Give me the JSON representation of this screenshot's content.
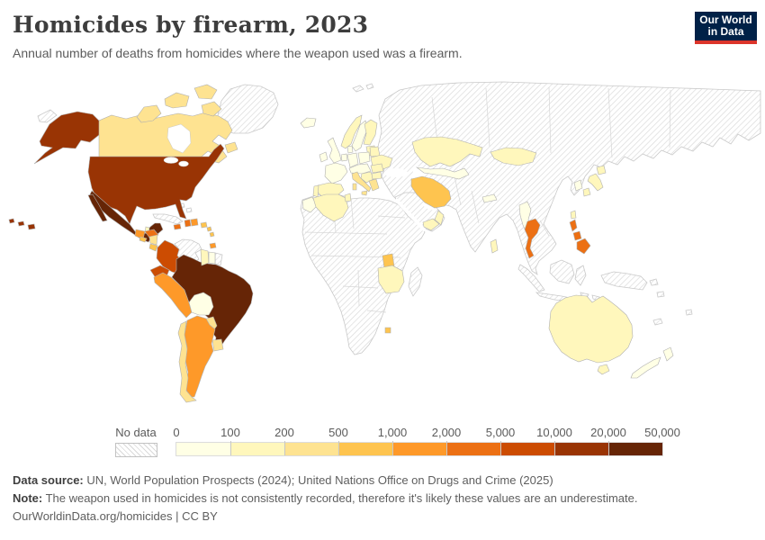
{
  "header": {
    "title": "Homicides by firearm, 2023",
    "subtitle": "Annual number of deaths from homicides where the weapon used was a firearm."
  },
  "logo": {
    "line1": "Our World",
    "line2": "in Data",
    "bg_color": "#002147",
    "accent_color": "#dc352b"
  },
  "legend": {
    "no_data_label": "No data",
    "tick_labels": [
      "0",
      "100",
      "200",
      "500",
      "1,000",
      "2,000",
      "5,000",
      "10,000",
      "20,000",
      "50,000"
    ],
    "bin_colors": [
      "#ffffe5",
      "#fff7bc",
      "#fee391",
      "#fec44f",
      "#fe9929",
      "#ec7014",
      "#cc4c02",
      "#993404",
      "#662506"
    ]
  },
  "footer": {
    "source_prefix": "Data source:",
    "source_text": " UN, World Population Prospects (2024); United Nations Office on Drugs and Crime (2025)",
    "note_prefix": "Note:",
    "note_text": " The weapon used in homicides is not consistently recorded, therefore it's likely these values are an underestimate.",
    "link_line": "OurWorldinData.org/homicides | CC BY"
  },
  "chart_data": {
    "type": "choropleth_map",
    "title": "Homicides by firearm, 2023",
    "unit": "annual deaths from firearm homicide",
    "legend_bins": [
      {
        "range": "0–100",
        "color": "#ffffe5"
      },
      {
        "range": "100–200",
        "color": "#fff7bc"
      },
      {
        "range": "200–500",
        "color": "#fee391"
      },
      {
        "range": "500–1,000",
        "color": "#fec44f"
      },
      {
        "range": "1,000–2,000",
        "color": "#fe9929"
      },
      {
        "range": "2,000–5,000",
        "color": "#ec7014"
      },
      {
        "range": "5,000–10,000",
        "color": "#cc4c02"
      },
      {
        "range": "10,000–20,000",
        "color": "#993404"
      },
      {
        "range": "20,000–50,000",
        "color": "#662506"
      }
    ],
    "countries": {
      "United States": "10,000–20,000",
      "Mexico": "20,000–50,000",
      "Canada": "200–500",
      "Guatemala": "1,000–2,000",
      "Belize": "100–200",
      "Honduras": "2,000–5,000",
      "El Salvador": "500–1,000",
      "Nicaragua": "200–500",
      "Costa Rica": "500–1,000",
      "Panama": "1,000–2,000",
      "Jamaica": "2,000–5,000",
      "Haiti": "2,000–5,000",
      "Dominican Republic": "1,000–2,000",
      "Puerto Rico": "500–1,000",
      "Trinidad and Tobago": "1,000–2,000",
      "Colombia": "5,000–10,000",
      "Ecuador": "5,000–10,000",
      "Peru": "1,000–2,000",
      "Brazil": "20,000–50,000",
      "Bolivia": "0–100",
      "Paraguay": "200–500",
      "Uruguay": "200–500",
      "Argentina": "1,000–2,000",
      "Chile": "200–500",
      "Guyana": "100–200",
      "Suriname": "0–100",
      "Iceland": "0–100",
      "Ireland": "0–100",
      "United Kingdom": "0–100",
      "France": "0–100",
      "Spain": "100–200",
      "Portugal": "100–200",
      "Germany": "0–100",
      "Italy": "200–500",
      "Greece": "200–500",
      "Norway": "100–200",
      "Sweden": "0–100",
      "Finland": "100–200",
      "Poland": "0–100",
      "Ukraine": "100–200",
      "Belarus": "100–200",
      "Romania": "100–200",
      "Morocco": "0–100",
      "Algeria": "100–200",
      "Tunisia": "100–200",
      "Uganda": "500–1,000",
      "Tanzania": "100–200",
      "Eswatini": "500–1,000",
      "Iran": "500–1,000",
      "Yemen": "100–200",
      "Oman": "100–200",
      "Kazakhstan": "100–200",
      "Mongolia": "100–200",
      "Nepal": "0–100",
      "Sri Lanka": "100–200",
      "Myanmar": "0–100",
      "Thailand": "2,000–5,000",
      "Philippines": "2,000–5,000",
      "Japan": "100–200",
      "South Korea": "0–100",
      "Taiwan": "100–200",
      "Australia": "100–200",
      "New Zealand": "0–100"
    },
    "no_data": {
      "label": "No data",
      "regions": [
        "Russia",
        "China",
        "India",
        "Pakistan",
        "Afghanistan",
        "Turkey",
        "Iraq",
        "Saudi Arabia",
        "Egypt",
        "Libya",
        "most of Sub-Saharan Africa",
        "Madagascar",
        "Venezuela",
        "Cuba",
        "Bahamas",
        "Greenland",
        "French Guiana",
        "Vietnam",
        "Laos",
        "Cambodia",
        "North Korea",
        "Indonesia",
        "Malaysia",
        "Papua New Guinea"
      ]
    },
    "country_colors": {
      "united-states": "#993404",
      "canada": "#fee391",
      "mexico": "#662506",
      "guatemala": "#fe9929",
      "belize": "#fff7bc",
      "honduras": "#ec7014",
      "el-salvador": "#fec44f",
      "nicaragua": "#fee391",
      "costa-rica": "#fec44f",
      "panama": "#fe9929",
      "jamaica": "#ec7014",
      "haiti": "#ec7014",
      "dominican-republic": "#fe9929",
      "puerto-rico": "#fec44f",
      "lesser-antilles": "#fec44f",
      "trinidad-and-tobago": "#fe9929",
      "colombia": "#cc4c02",
      "ecuador": "#cc4c02",
      "peru": "#fe9929",
      "brazil": "#662506",
      "bolivia": "#ffffe5",
      "paraguay": "#fee391",
      "uruguay": "#fee391",
      "argentina": "#fe9929",
      "chile": "#fee391",
      "guyana": "#fff7bc",
      "suriname": "#ffffe5",
      "iceland": "#ffffe5",
      "ireland": "#ffffe5",
      "united-kingdom": "#ffffe5",
      "norway": "#fff7bc",
      "sweden": "#ffffe5",
      "finland": "#fff7bc",
      "baltics": "#fff7bc",
      "denmark": "#ffffe5",
      "germany": "#ffffe5",
      "benelux": "#ffffe5",
      "poland": "#ffffe5",
      "belarus": "#fff7bc",
      "ukraine": "#fff7bc",
      "france": "#ffffe5",
      "spain": "#fff7bc",
      "portugal": "#fff7bc",
      "central-europe": "#ffffe5",
      "italy": "#fee391",
      "balkans": "#fff7bc",
      "romania": "#fff7bc",
      "bulgaria": "#fff7bc",
      "greece": "#fee391",
      "morocco": "#ffffe5",
      "algeria": "#fff7bc",
      "tunisia": "#fff7bc",
      "uganda": "#fec44f",
      "tanzania": "#fff7bc",
      "eswatini": "#fec44f",
      "kazakhstan": "#fff7bc",
      "central-asia": "#ffffe5",
      "mongolia": "#fff7bc",
      "iran": "#fec44f",
      "yemen": "#fff7bc",
      "oman": "#fff7bc",
      "nepal": "#ffffe5",
      "sri-lanka": "#fff7bc",
      "myanmar": "#ffffe5",
      "thailand": "#ec7014",
      "philippines": "#ec7014",
      "japan": "#fff7bc",
      "south-korea": "#ffffe5",
      "taiwan": "#fff7bc",
      "australia": "#fff7bc",
      "new-zealand": "#ffffe5",
      "greenland": "no-data",
      "russia-and-asia": "no-data",
      "arabia": "no-data",
      "africa": "no-data",
      "madagascar": "no-data",
      "venezuela": "no-data",
      "french-guiana": "no-data",
      "cuba": "no-data",
      "bahamas": "no-data",
      "indonesia": "no-data",
      "papua-new-guinea": "no-data",
      "pacific-islands": "no-data",
      "chukotka": "no-data",
      "svalbard": "no-data",
      "novaya-zemlya": "no-data"
    }
  }
}
